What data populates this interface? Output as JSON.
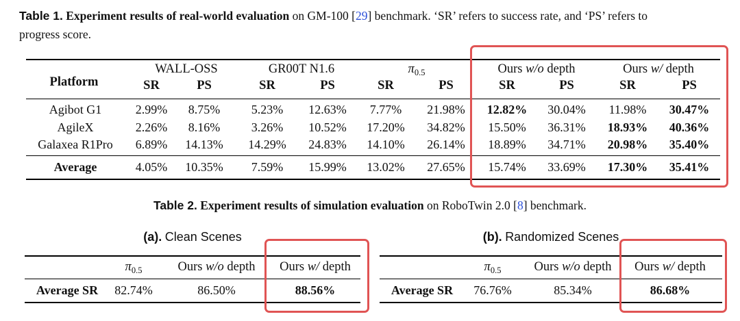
{
  "table1": {
    "caption_label": "Table 1.",
    "caption_bold": "Experiment results of real-world evaluation",
    "caption_on": "on GM-100 [",
    "caption_cite": "29",
    "caption_rest1": "] benchmark. ‘SR’ refers to success rate, and ‘PS’ refers to",
    "caption_rest2": "progress score.",
    "platform_header": "Platform",
    "groups": [
      {
        "label_pre": "WALL-OSS",
        "label_it": "",
        "label_post": ""
      },
      {
        "label_pre": "GR00T N1.6",
        "label_it": "",
        "label_post": ""
      },
      {
        "label_pre": "π",
        "label_it": "",
        "label_post": "0.5"
      },
      {
        "label_pre": "Ours ",
        "label_it": "w/o",
        "label_post": " depth"
      },
      {
        "label_pre": "Ours ",
        "label_it": "w/",
        "label_post": " depth"
      }
    ],
    "sub_sr": "SR",
    "sub_ps": "PS",
    "rows": [
      {
        "platform": "Agibot G1",
        "values": [
          "2.99%",
          "8.75%",
          "5.23%",
          "12.63%",
          "7.77%",
          "21.98%",
          "12.82%",
          "30.04%",
          "11.98%",
          "30.47%"
        ],
        "bold": [
          false,
          false,
          false,
          false,
          false,
          false,
          true,
          false,
          false,
          true
        ]
      },
      {
        "platform": "AgileX",
        "values": [
          "2.26%",
          "8.16%",
          "3.26%",
          "10.52%",
          "17.20%",
          "34.82%",
          "15.50%",
          "36.31%",
          "18.93%",
          "40.36%"
        ],
        "bold": [
          false,
          false,
          false,
          false,
          false,
          false,
          false,
          false,
          true,
          true
        ]
      },
      {
        "platform": "Galaxea R1Pro",
        "values": [
          "6.89%",
          "14.13%",
          "14.29%",
          "24.83%",
          "14.10%",
          "26.14%",
          "18.89%",
          "34.71%",
          "20.98%",
          "35.40%"
        ],
        "bold": [
          false,
          false,
          false,
          false,
          false,
          false,
          false,
          false,
          true,
          true
        ]
      }
    ],
    "average": {
      "platform": "Average",
      "values": [
        "4.05%",
        "10.35%",
        "7.59%",
        "15.99%",
        "13.02%",
        "27.65%",
        "15.74%",
        "33.69%",
        "17.30%",
        "35.41%"
      ],
      "bold": [
        false,
        false,
        false,
        false,
        false,
        false,
        false,
        false,
        true,
        true
      ]
    }
  },
  "table2": {
    "caption_label": "Table 2.",
    "caption_bold": "Experiment results of simulation evaluation",
    "caption_on": "on RoboTwin 2.0 [",
    "caption_cite": "8",
    "caption_rest": "] benchmark.",
    "sub_a": {
      "label": "(a).",
      "title": "Clean Scenes",
      "col_pi": "π",
      "col_pi_sub": "0.5",
      "col_wo_pre": "Ours ",
      "col_wo_it": "w/o",
      "col_wo_post": " depth",
      "col_w_pre": "Ours ",
      "col_w_it": "w/",
      "col_w_post": " depth",
      "row_label": "Average SR",
      "values": [
        "82.74%",
        "86.50%",
        "88.56%"
      ]
    },
    "sub_b": {
      "label": "(b).",
      "title": "Randomized Scenes",
      "col_pi": "π",
      "col_pi_sub": "0.5",
      "col_wo_pre": "Ours ",
      "col_wo_it": "w/o",
      "col_wo_post": " depth",
      "col_w_pre": "Ours ",
      "col_w_it": "w/",
      "col_w_post": " depth",
      "row_label": "Average SR",
      "values": [
        "76.76%",
        "85.34%",
        "86.68%"
      ]
    }
  },
  "highlight_color": "#e05454"
}
